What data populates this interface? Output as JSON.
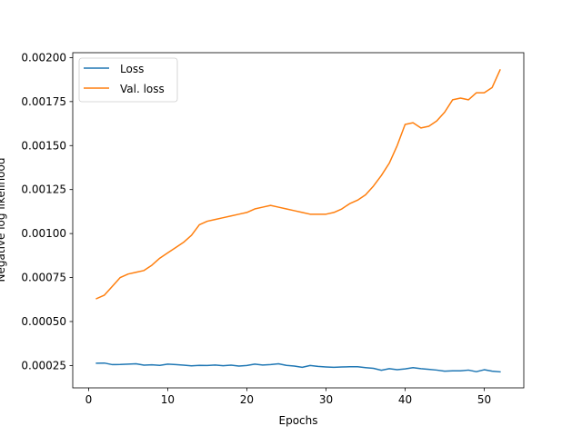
{
  "chart_data": {
    "type": "line",
    "title": "",
    "xlabel": "Epochs",
    "ylabel": "Negative log likelihood",
    "xlim": [
      -2,
      55
    ],
    "ylim": [
      0.000123,
      0.002028
    ],
    "xticks": [
      0,
      10,
      20,
      30,
      40,
      50
    ],
    "xtick_labels": [
      "0",
      "10",
      "20",
      "30",
      "40",
      "50"
    ],
    "yticks": [
      0.00025,
      0.0005,
      0.00075,
      0.001,
      0.00125,
      0.0015,
      0.00175,
      0.002
    ],
    "ytick_labels": [
      "0.00025",
      "0.00050",
      "0.00075",
      "0.00100",
      "0.00125",
      "0.00150",
      "0.00175",
      "0.00200"
    ],
    "grid": false,
    "legend_position": "top-left",
    "x": [
      1,
      2,
      3,
      4,
      5,
      6,
      7,
      8,
      9,
      10,
      11,
      12,
      13,
      14,
      15,
      16,
      17,
      18,
      19,
      20,
      21,
      22,
      23,
      24,
      25,
      26,
      27,
      28,
      29,
      30,
      31,
      32,
      33,
      34,
      35,
      36,
      37,
      38,
      39,
      40,
      41,
      42,
      43,
      44,
      45,
      46,
      47,
      48,
      49,
      50,
      51,
      52
    ],
    "series": [
      {
        "name": "Loss",
        "color": "#1f77b4",
        "values": [
          0.000263,
          0.000264,
          0.000255,
          0.000256,
          0.000258,
          0.00026,
          0.000252,
          0.000254,
          0.000251,
          0.000258,
          0.000255,
          0.000252,
          0.000248,
          0.000251,
          0.00025,
          0.000253,
          0.000249,
          0.000252,
          0.000247,
          0.00025,
          0.000258,
          0.000253,
          0.000255,
          0.00026,
          0.000251,
          0.000247,
          0.00024,
          0.00025,
          0.000245,
          0.000242,
          0.00024,
          0.000242,
          0.000243,
          0.000243,
          0.000238,
          0.000234,
          0.000223,
          0.000232,
          0.000226,
          0.000231,
          0.000238,
          0.000232,
          0.000228,
          0.000224,
          0.000218,
          0.00022,
          0.00022,
          0.000224,
          0.000215,
          0.000226,
          0.000218,
          0.000214
        ]
      },
      {
        "name": "Val. loss",
        "color": "#ff7f0e",
        "values": [
          0.00063,
          0.00065,
          0.0007,
          0.00075,
          0.00077,
          0.00078,
          0.00079,
          0.00082,
          0.00086,
          0.00089,
          0.00092,
          0.00095,
          0.00099,
          0.00105,
          0.00107,
          0.00108,
          0.00109,
          0.0011,
          0.00111,
          0.00112,
          0.00114,
          0.00115,
          0.00116,
          0.00115,
          0.00114,
          0.00113,
          0.00112,
          0.00111,
          0.00111,
          0.00111,
          0.00112,
          0.00114,
          0.00117,
          0.00119,
          0.00122,
          0.00127,
          0.00133,
          0.0014,
          0.0015,
          0.00162,
          0.00163,
          0.0016,
          0.00161,
          0.00164,
          0.00169,
          0.00176,
          0.00177,
          0.00176,
          0.0018,
          0.0018,
          0.00183,
          0.00193
        ]
      }
    ]
  }
}
